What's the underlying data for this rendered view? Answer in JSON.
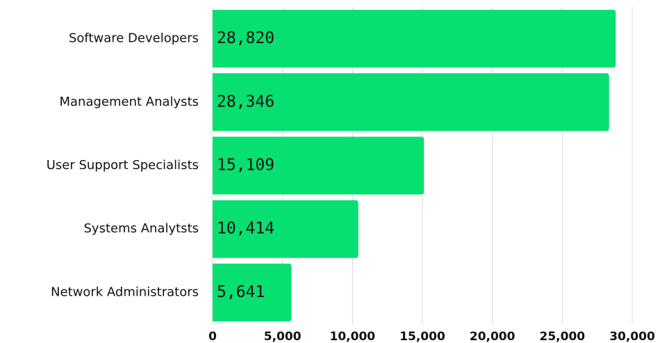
{
  "chart_data": {
    "type": "bar",
    "orientation": "horizontal",
    "categories": [
      "Software Developers",
      "Management Analysts",
      "User Support Specialists",
      "Systems Analytsts",
      "Network Administrators"
    ],
    "values": [
      28820,
      28346,
      15109,
      10414,
      5641
    ],
    "value_labels": [
      "28,820",
      "28,346",
      "15,109",
      "10,414",
      "5,641"
    ],
    "color": "#07e070",
    "xlim": [
      0,
      30000
    ],
    "xticks": [
      0,
      {
        "value": 5000,
        "label": "5,000"
      },
      {
        "value": 10000,
        "label": "10,000"
      },
      {
        "value": 15000,
        "label": "15,000"
      },
      {
        "value": 20000,
        "label": "20,000"
      },
      {
        "value": 25000,
        "label": "25,000"
      },
      {
        "value": 30000,
        "label": "30,000"
      }
    ],
    "grid": true
  }
}
